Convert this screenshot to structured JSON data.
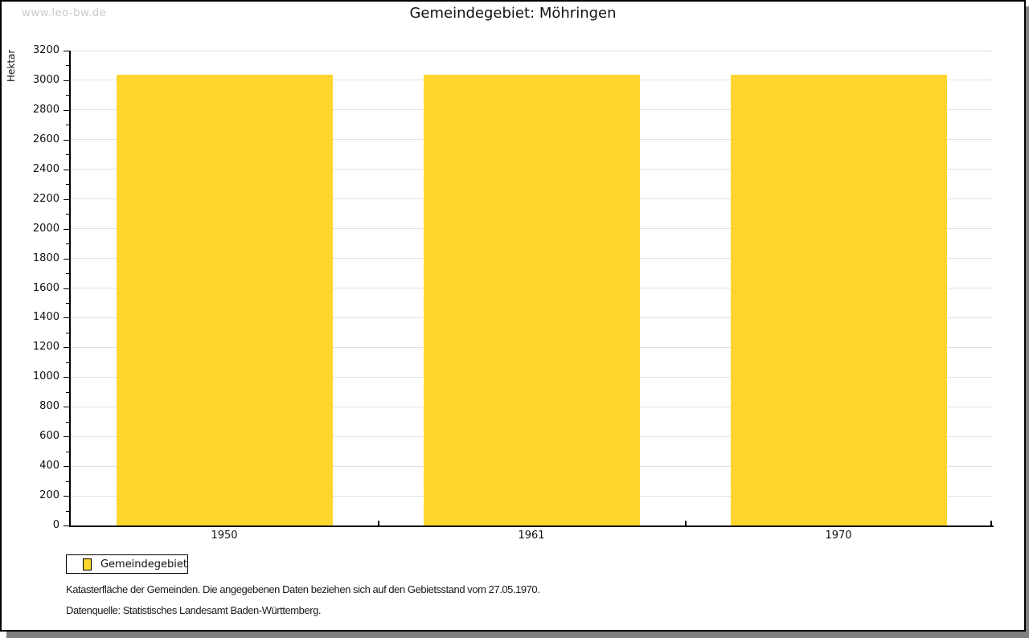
{
  "watermark": "www.leo-bw.de",
  "title": "Gemeindegebiet: Möhringen",
  "chart_data": {
    "type": "bar",
    "title": "Gemeindegebiet: Möhringen",
    "ylabel": "Hektar",
    "xlabel": "",
    "categories": [
      "1950",
      "1961",
      "1970"
    ],
    "series": [
      {
        "name": "Gemeindegebiet",
        "values": [
          3035,
          3035,
          3035
        ]
      }
    ],
    "ylim": [
      0,
      3200
    ],
    "y_major_step": 200,
    "y_minor_step": 100,
    "grid": true,
    "bar_color": "#FCD62D",
    "legend_position": "bottom-left"
  },
  "legend": {
    "items": [
      {
        "label": "Gemeindegebiet",
        "color": "#FCD62D"
      }
    ]
  },
  "footer": {
    "line1": "Katasterfläche der Gemeinden. Die angegebenen Daten beziehen sich auf den Gebietsstand vom 27.05.1970.",
    "line2": "Datenquelle: Statistisches Landesamt Baden-Württemberg."
  }
}
